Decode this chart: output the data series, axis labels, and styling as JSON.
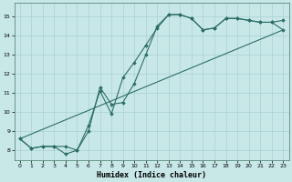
{
  "xlabel": "Humidex (Indice chaleur)",
  "bg_color": "#c8e8e8",
  "line_color": "#2d6e65",
  "grid_color": "#aad0d0",
  "xlim": [
    -0.5,
    23.5
  ],
  "ylim": [
    7.5,
    15.7
  ],
  "xticks": [
    0,
    1,
    2,
    3,
    4,
    5,
    6,
    7,
    8,
    9,
    10,
    11,
    12,
    13,
    14,
    15,
    16,
    17,
    18,
    19,
    20,
    21,
    22,
    23
  ],
  "yticks": [
    8,
    9,
    10,
    11,
    12,
    13,
    14,
    15
  ],
  "line1_x": [
    0,
    1,
    2,
    3,
    4,
    5,
    6,
    7,
    8,
    9,
    10,
    11,
    12,
    13,
    14,
    15,
    16,
    17,
    18,
    19,
    20,
    21,
    22,
    23
  ],
  "line1_y": [
    8.6,
    8.1,
    8.2,
    8.2,
    7.8,
    8.0,
    9.3,
    11.1,
    9.9,
    11.8,
    12.6,
    13.5,
    14.4,
    15.1,
    15.1,
    14.9,
    14.3,
    14.4,
    14.9,
    14.9,
    14.8,
    14.7,
    14.7,
    14.8
  ],
  "line2_x": [
    0,
    1,
    2,
    3,
    4,
    5,
    6,
    7,
    8,
    9,
    10,
    11,
    12,
    13,
    14,
    15,
    16,
    17,
    18,
    19,
    20,
    21,
    22,
    23
  ],
  "line2_y": [
    8.6,
    8.1,
    8.2,
    8.2,
    8.2,
    8.0,
    9.0,
    11.3,
    10.4,
    10.5,
    11.5,
    13.0,
    14.5,
    15.1,
    15.1,
    14.9,
    14.3,
    14.4,
    14.9,
    14.9,
    14.8,
    14.7,
    14.7,
    14.3
  ],
  "line3_x": [
    0,
    23
  ],
  "line3_y": [
    8.6,
    14.3
  ]
}
